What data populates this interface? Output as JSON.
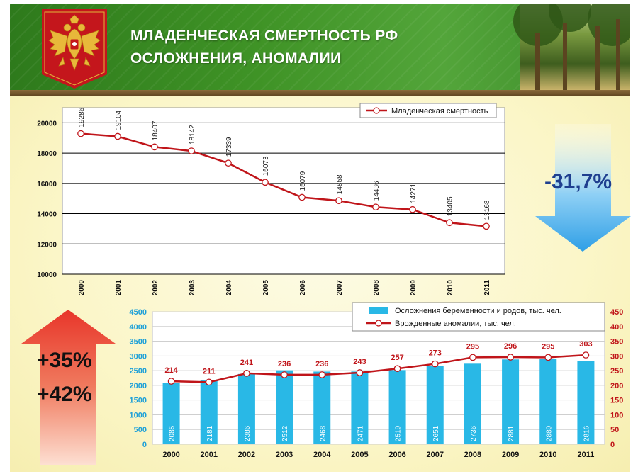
{
  "header": {
    "title_line1": "МЛАДЕНЧЕСКАЯ СМЕРТНОСТЬ РФ",
    "title_line2": "ОСЛОЖНЕНИЯ, АНОМАЛИИ"
  },
  "badges": {
    "decrease": "-31,7%",
    "increase_1": "+35%",
    "increase_2": "+42%"
  },
  "colors": {
    "line_red": "#c0151a",
    "bar_cyan": "#29b8e6",
    "header_green": "#3f9326",
    "arrow_blue": "#4fb0ea",
    "arrow_red": "#e8362a"
  },
  "chart_data": [
    {
      "type": "line",
      "x": [
        "2000",
        "2001",
        "2002",
        "2003",
        "2004",
        "2005",
        "2006",
        "2007",
        "2008",
        "2009",
        "2010",
        "2011"
      ],
      "series": [
        {
          "name": "Младенческая смертность",
          "values": [
            19286,
            19104,
            18407,
            18142,
            17339,
            16073,
            15079,
            14858,
            14436,
            14271,
            13405,
            13168
          ]
        }
      ],
      "yticks": [
        "10000",
        "12000",
        "14000",
        "16000",
        "18000",
        "20000"
      ],
      "ylim": [
        10000,
        21000
      ],
      "grid": true,
      "legend": "top-right"
    },
    {
      "type": "bar",
      "x": [
        "2000",
        "2001",
        "2002",
        "2003",
        "2004",
        "2005",
        "2006",
        "2007",
        "2008",
        "2009",
        "2010",
        "2011"
      ],
      "series": [
        {
          "name": "Осложнения беременности и родов, тыс. чел.",
          "axis": "left",
          "values": [
            2085,
            2181,
            2386,
            2512,
            2468,
            2471,
            2519,
            2651,
            2736,
            2881,
            2889,
            2816
          ]
        },
        {
          "name": "Врожденные аномалии, тыс. чел.",
          "axis": "right",
          "type": "line",
          "values": [
            214,
            211,
            241,
            236,
            236,
            243,
            257,
            273,
            295,
            296,
            295,
            303
          ]
        }
      ],
      "yticks_left": [
        "0",
        "500",
        "1000",
        "1500",
        "2000",
        "2500",
        "3000",
        "3500",
        "4000",
        "4500"
      ],
      "yticks_right": [
        "0",
        "50",
        "100",
        "150",
        "200",
        "250",
        "300",
        "350",
        "400",
        "450"
      ],
      "ylim_left": [
        0,
        4500
      ],
      "ylim_right": [
        0,
        450
      ],
      "grid": true,
      "legend": "top-right"
    }
  ]
}
